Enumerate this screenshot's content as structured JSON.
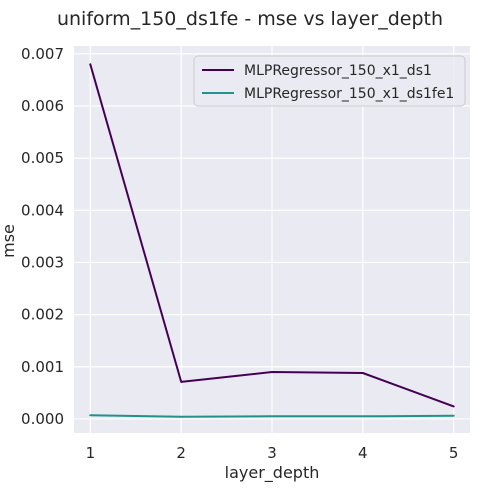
{
  "chart_data": {
    "type": "line",
    "title": "uniform_150_ds1fe - mse vs layer_depth",
    "xlabel": "layer_depth",
    "ylabel": "mse",
    "x": [
      1,
      2,
      3,
      4,
      5
    ],
    "x_ticks": [
      "1",
      "2",
      "3",
      "4",
      "5"
    ],
    "y_ticks": [
      "0.000",
      "0.001",
      "0.002",
      "0.003",
      "0.004",
      "0.005",
      "0.006",
      "0.007"
    ],
    "xlim": [
      0.82,
      5.18
    ],
    "ylim": [
      -0.00027,
      0.00715
    ],
    "grid": true,
    "legend_position": "top-right",
    "series": [
      {
        "name": "MLPRegressor_150_x1_ds1",
        "color": "#440154",
        "values": [
          0.0068,
          0.00071,
          0.0009,
          0.00088,
          0.00024
        ]
      },
      {
        "name": "MLPRegressor_150_x1_ds1fe1",
        "color": "#21918c",
        "values": [
          7e-05,
          4e-05,
          5e-05,
          5e-05,
          6e-05
        ]
      }
    ]
  },
  "colors": {
    "plot_background": "#eaeaf2",
    "grid": "#ffffff"
  }
}
